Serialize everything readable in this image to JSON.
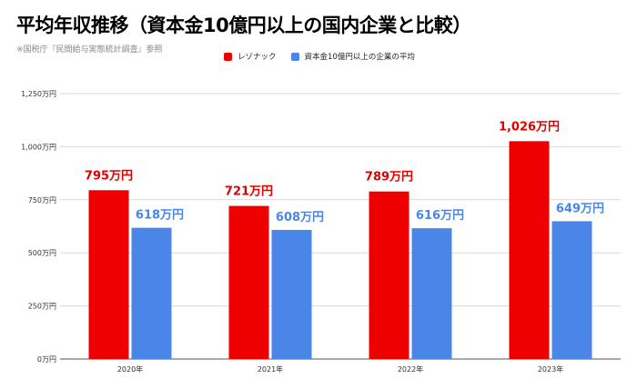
{
  "title": "平均年収推移（資本金10億円以上の国内企業と比較）",
  "source_note": "※国税庁『民間給与実態統計調査』参照",
  "chart_data": {
    "type": "bar",
    "categories": [
      "2020年",
      "2021年",
      "2022年",
      "2023年"
    ],
    "series": [
      {
        "name": "レゾナック",
        "values": [
          795,
          721,
          789,
          1026
        ],
        "labels": [
          "795万円",
          "721万円",
          "789万円",
          "1,026万円"
        ],
        "color": "#ee0000"
      },
      {
        "name": "資本金10億円以上の企業の平均",
        "values": [
          618,
          608,
          616,
          649
        ],
        "labels": [
          "618万円",
          "608万円",
          "616万円",
          "649万円"
        ],
        "color": "#4a86e8"
      }
    ],
    "yticks": [
      0,
      250,
      500,
      750,
      1000,
      1250
    ],
    "ytick_labels": [
      "0万円",
      "250万円",
      "500万円",
      "750万円",
      "1,000万円",
      "1,250万円"
    ],
    "ylim": [
      0,
      1250
    ],
    "grid": true,
    "legend_position": "top-center",
    "xlabel": "",
    "ylabel": ""
  },
  "colors": {
    "grid": "#d9d9d9",
    "axis": "#555555"
  }
}
